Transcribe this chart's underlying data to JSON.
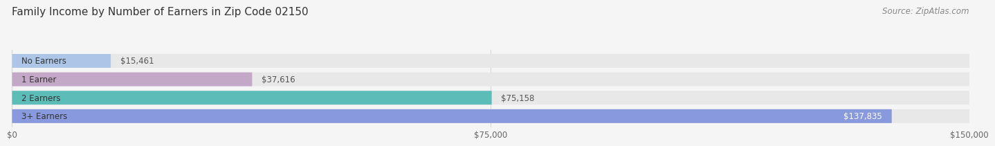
{
  "title": "Family Income by Number of Earners in Zip Code 02150",
  "source": "Source: ZipAtlas.com",
  "categories": [
    "No Earners",
    "1 Earner",
    "2 Earners",
    "3+ Earners"
  ],
  "values": [
    15461,
    37616,
    75158,
    137835
  ],
  "bar_colors": [
    "#adc6e8",
    "#c4a8c8",
    "#5bbcb8",
    "#8899dd"
  ],
  "bar_bg_color": "#e8e8e8",
  "value_labels": [
    "$15,461",
    "$37,616",
    "$75,158",
    "$137,835"
  ],
  "xlim": [
    0,
    150000
  ],
  "xticks": [
    0,
    75000,
    150000
  ],
  "xtick_labels": [
    "$0",
    "$75,000",
    "$150,000"
  ],
  "background_color": "#f5f5f5",
  "title_fontsize": 11,
  "source_fontsize": 8.5,
  "label_fontsize": 8.5,
  "value_fontsize": 8.5,
  "tick_fontsize": 8.5
}
